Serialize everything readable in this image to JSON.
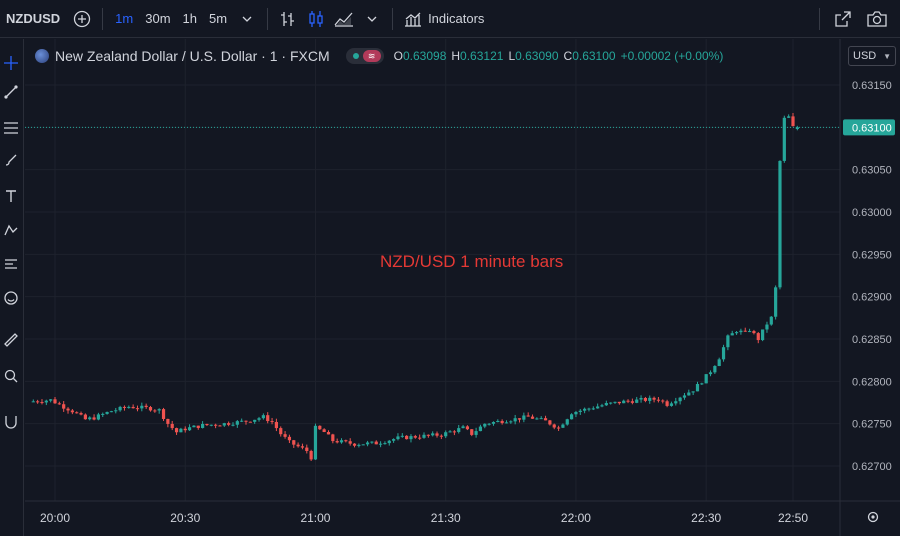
{
  "toolbar": {
    "symbol": "NZDUSD",
    "timeframes": [
      "1m",
      "30m",
      "1h",
      "5m"
    ],
    "active_timeframe": "1m",
    "indicators_label": "Indicators"
  },
  "legend": {
    "title": "New Zealand Dollar / U.S. Dollar · 1 · FXCM",
    "open_key": "O",
    "open": "0.63098",
    "high_key": "H",
    "high": "0.63121",
    "low_key": "L",
    "low": "0.63090",
    "close_key": "C",
    "close": "0.63100",
    "change": "+0.00002 (+0.00%)"
  },
  "currency": "USD",
  "colors": {
    "up": "#26a69a",
    "down": "#ef5350",
    "background": "#131722",
    "grid": "#1e222d",
    "accent": "#2962ff"
  },
  "chart_data": {
    "type": "candlestick",
    "symbol": "NZDUSD",
    "interval": "1 minute",
    "title": "New Zealand Dollar / U.S. Dollar · 1 · FXCM",
    "annotation": "NZD/USD 1 minute bars",
    "y_ticks": [
      "0.63150",
      "0.63100",
      "0.63050",
      "0.63000",
      "0.62950",
      "0.62900",
      "0.62850",
      "0.62800",
      "0.62750",
      "0.62700"
    ],
    "y_range": [
      0.6268,
      0.632
    ],
    "x_ticks": [
      "20:00",
      "20:30",
      "21:00",
      "21:30",
      "22:00",
      "22:30",
      "22:50"
    ],
    "x_tick_minutes": [
      0,
      30,
      60,
      90,
      120,
      150,
      170
    ],
    "x_range_minutes": [
      -6,
      178
    ],
    "last_price": "0.63100",
    "last_value": 0.631,
    "key_prices_minutes": [
      [
        -5,
        0.62776
      ],
      [
        0,
        0.62778
      ],
      [
        3,
        0.6277
      ],
      [
        5,
        0.62765
      ],
      [
        8,
        0.62755
      ],
      [
        10,
        0.62757
      ],
      [
        14,
        0.62765
      ],
      [
        18,
        0.6277
      ],
      [
        23,
        0.62768
      ],
      [
        25,
        0.62766
      ],
      [
        27,
        0.6275
      ],
      [
        29,
        0.6274
      ],
      [
        31,
        0.62744
      ],
      [
        35,
        0.62748
      ],
      [
        40,
        0.6275
      ],
      [
        45,
        0.62753
      ],
      [
        49,
        0.62758
      ],
      [
        51,
        0.62752
      ],
      [
        53,
        0.62738
      ],
      [
        55,
        0.62728
      ],
      [
        59,
        0.62718
      ],
      [
        60,
        0.6271
      ],
      [
        61,
        0.62745
      ],
      [
        63,
        0.6274
      ],
      [
        65,
        0.6273
      ],
      [
        70,
        0.62726
      ],
      [
        75,
        0.62727
      ],
      [
        80,
        0.62733
      ],
      [
        85,
        0.62735
      ],
      [
        90,
        0.62737
      ],
      [
        93,
        0.62742
      ],
      [
        95,
        0.62745
      ],
      [
        97,
        0.62738
      ],
      [
        100,
        0.6275
      ],
      [
        105,
        0.62754
      ],
      [
        110,
        0.62758
      ],
      [
        114,
        0.62753
      ],
      [
        117,
        0.62745
      ],
      [
        120,
        0.62763
      ],
      [
        124,
        0.62768
      ],
      [
        128,
        0.62773
      ],
      [
        132,
        0.62776
      ],
      [
        136,
        0.62778
      ],
      [
        140,
        0.62779
      ],
      [
        142,
        0.62773
      ],
      [
        145,
        0.62782
      ],
      [
        148,
        0.6279
      ],
      [
        150,
        0.628
      ],
      [
        152,
        0.62812
      ],
      [
        154,
        0.62828
      ],
      [
        156,
        0.62852
      ],
      [
        158,
        0.6286
      ],
      [
        160,
        0.62857
      ],
      [
        161,
        0.62861
      ],
      [
        163,
        0.6285
      ],
      [
        165,
        0.62868
      ],
      [
        166,
        0.62875
      ],
      [
        167,
        0.6291
      ],
      [
        168,
        0.6306
      ],
      [
        169,
        0.6311
      ],
      [
        170,
        0.63112
      ],
      [
        171,
        0.631
      ]
    ]
  }
}
